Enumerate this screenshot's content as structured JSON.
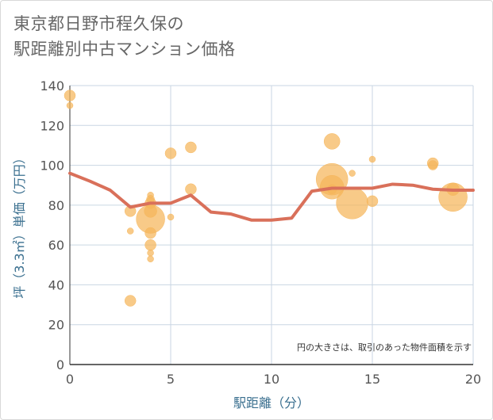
{
  "title_line1": "東京都日野市程久保の",
  "title_line2": "駅距離別中古マンション価格",
  "chart_data": {
    "type": "scatter",
    "xlabel": "駅距離（分）",
    "ylabel": "坪（3.3㎡）単価（万円）",
    "xlim": [
      0,
      20
    ],
    "ylim": [
      0,
      140
    ],
    "xticks": [
      0,
      5,
      10,
      15,
      20
    ],
    "yticks": [
      0,
      20,
      40,
      60,
      80,
      100,
      120,
      140
    ],
    "grid": true,
    "annotation": "円の大きさは、取引のあった物件面積を示す",
    "colors": {
      "bubble": "#f5b55a",
      "line": "#d9705a",
      "grid": "#c9d6e3"
    },
    "bubbles": [
      {
        "x": 0,
        "y": 135,
        "size": 7
      },
      {
        "x": 0,
        "y": 130,
        "size": 4
      },
      {
        "x": 3,
        "y": 77,
        "size": 7
      },
      {
        "x": 3,
        "y": 67,
        "size": 4
      },
      {
        "x": 3,
        "y": 32,
        "size": 7
      },
      {
        "x": 4,
        "y": 85,
        "size": 4
      },
      {
        "x": 4,
        "y": 83,
        "size": 5
      },
      {
        "x": 4,
        "y": 81,
        "size": 7
      },
      {
        "x": 4,
        "y": 77,
        "size": 8
      },
      {
        "x": 4,
        "y": 73,
        "size": 18
      },
      {
        "x": 4,
        "y": 66,
        "size": 7
      },
      {
        "x": 4,
        "y": 60,
        "size": 7
      },
      {
        "x": 4,
        "y": 56,
        "size": 4
      },
      {
        "x": 4,
        "y": 53,
        "size": 4
      },
      {
        "x": 5,
        "y": 106,
        "size": 7
      },
      {
        "x": 5,
        "y": 74,
        "size": 4
      },
      {
        "x": 6,
        "y": 109,
        "size": 7
      },
      {
        "x": 6,
        "y": 88,
        "size": 7
      },
      {
        "x": 13,
        "y": 112,
        "size": 10
      },
      {
        "x": 13,
        "y": 93,
        "size": 20
      },
      {
        "x": 13,
        "y": 89,
        "size": 15
      },
      {
        "x": 13,
        "y": 88,
        "size": 6
      },
      {
        "x": 14,
        "y": 96,
        "size": 4
      },
      {
        "x": 14,
        "y": 81,
        "size": 20
      },
      {
        "x": 15,
        "y": 103,
        "size": 4
      },
      {
        "x": 15,
        "y": 82,
        "size": 7
      },
      {
        "x": 18,
        "y": 101,
        "size": 7
      },
      {
        "x": 18,
        "y": 100,
        "size": 6
      },
      {
        "x": 19,
        "y": 88,
        "size": 8
      },
      {
        "x": 19,
        "y": 84,
        "size": 18
      }
    ],
    "line": {
      "x": [
        0,
        1,
        2,
        3,
        4,
        5,
        6,
        7,
        8,
        9,
        10,
        11,
        12,
        13,
        14,
        15,
        16,
        17,
        18,
        19,
        20
      ],
      "y": [
        96,
        92,
        87.5,
        79,
        81,
        81,
        85,
        76.5,
        75.5,
        72.5,
        72.5,
        73.5,
        87,
        88.5,
        88.5,
        88.5,
        90.5,
        90,
        88,
        87.5,
        87.5
      ]
    }
  }
}
